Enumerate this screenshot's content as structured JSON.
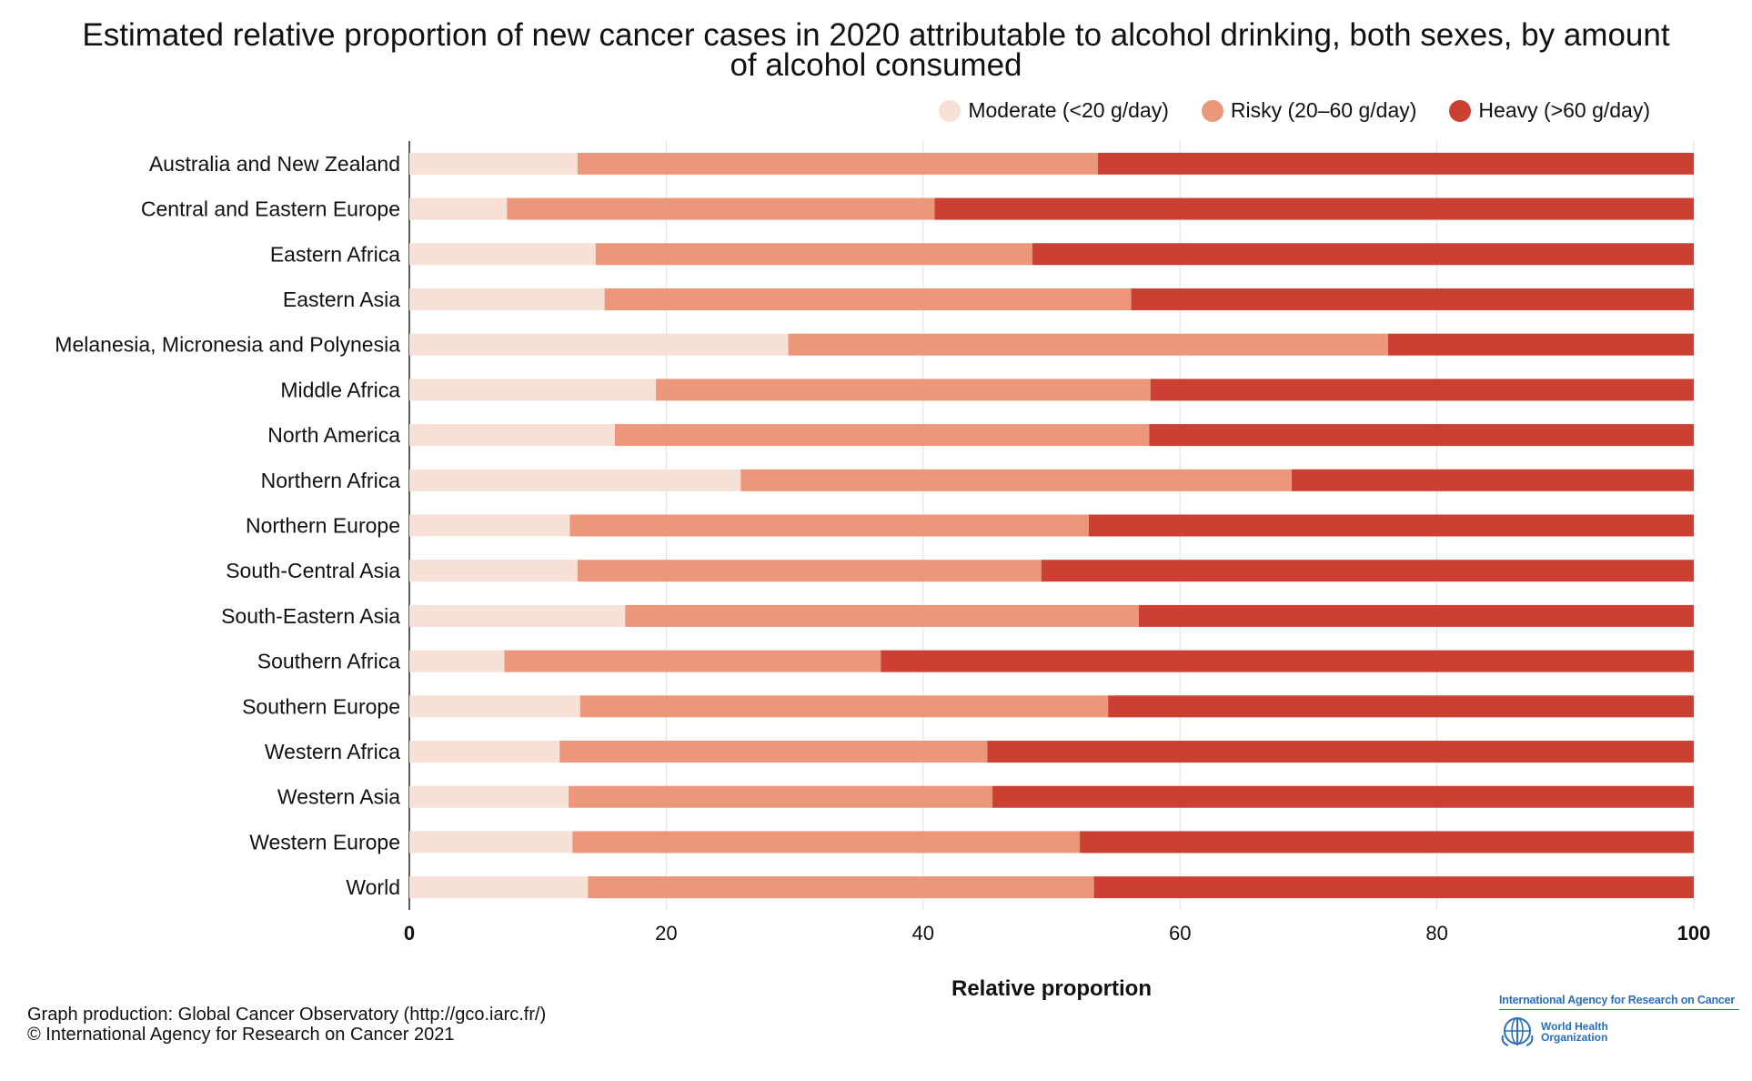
{
  "chart_data": {
    "type": "bar",
    "orientation": "horizontal",
    "stacked": true,
    "title": "Estimated relative proportion of new cancer cases in 2020 attributable to alcohol drinking, both sexes, by amount of alcohol consumed",
    "title_lines": [
      "Estimated relative proportion of new cancer cases in 2020 attributable to alcohol drinking, both sexes, by amount",
      "of alcohol consumed"
    ],
    "xlabel": "Relative proportion",
    "ylabel": "",
    "xlim": [
      0,
      100
    ],
    "xticks": [
      0,
      20,
      40,
      60,
      80,
      100
    ],
    "grid": "vertical",
    "legend_position": "top-right",
    "categories": [
      "Australia and New Zealand",
      "Central and Eastern Europe",
      "Eastern Africa",
      "Eastern Asia",
      "Melanesia, Micronesia and Polynesia",
      "Middle Africa",
      "North America",
      "Northern Africa",
      "Northern Europe",
      "South-Central Asia",
      "South-Eastern Asia",
      "Southern Africa",
      "Southern Europe",
      "Western Africa",
      "Western Asia",
      "Western Europe",
      "World"
    ],
    "series": [
      {
        "name": "Moderate (<20 g/day)",
        "color": "#f7e0d6",
        "values": [
          13.1,
          7.6,
          14.5,
          15.2,
          29.5,
          19.2,
          16.0,
          25.8,
          12.5,
          13.1,
          16.8,
          7.4,
          13.3,
          11.7,
          12.4,
          12.7,
          13.9
        ]
      },
      {
        "name": "Risky (20–60 g/day)",
        "color": "#ec967a",
        "values": [
          40.5,
          33.3,
          34.0,
          41.0,
          46.7,
          38.5,
          41.6,
          42.9,
          40.4,
          36.1,
          40.0,
          29.3,
          41.1,
          33.3,
          33.0,
          39.5,
          39.4
        ]
      },
      {
        "name": "Heavy (>60 g/day)",
        "color": "#cc4034",
        "values": [
          46.4,
          59.1,
          51.5,
          43.8,
          23.8,
          42.3,
          42.4,
          31.3,
          47.1,
          50.8,
          43.2,
          63.3,
          45.6,
          55.0,
          54.6,
          47.8,
          46.7
        ]
      }
    ]
  },
  "credits": {
    "line1": "Graph production: Global Cancer Observatory (http://gco.iarc.fr/)",
    "line2": "© International Agency for Research on Cancer 2021"
  },
  "logo": {
    "iarc": "International Agency for Research on Cancer",
    "who_line1": "World Health",
    "who_line2": "Organization"
  }
}
